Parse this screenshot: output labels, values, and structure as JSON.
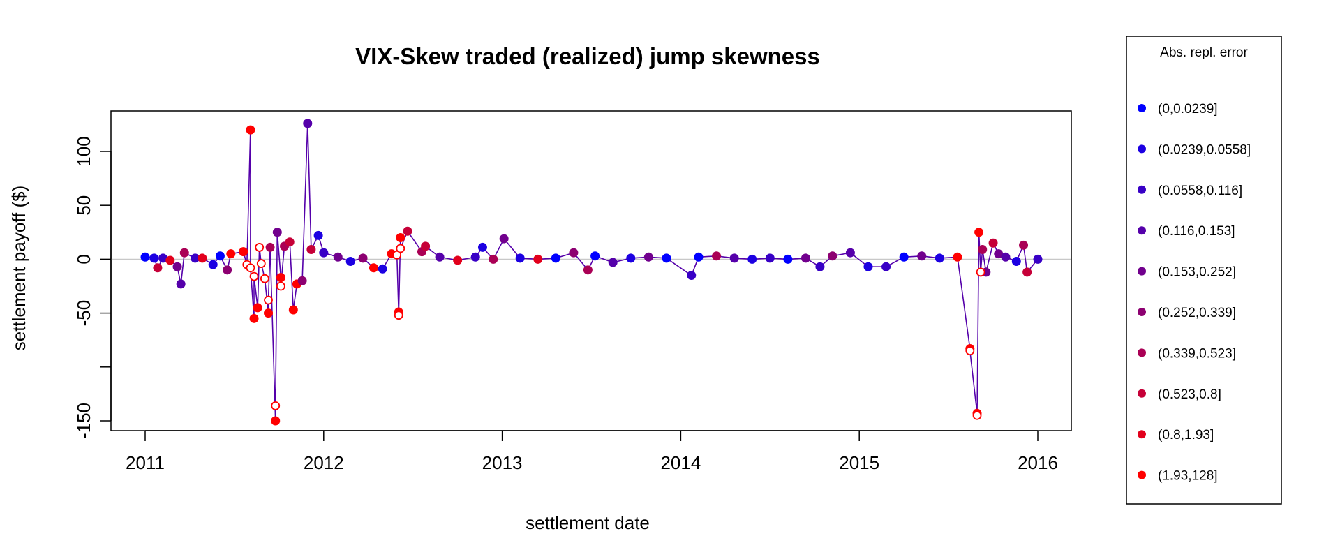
{
  "chart_data": {
    "type": "scatter",
    "title": "VIX-Skew traded (realized) jump skewness",
    "xlabel": "settlement date",
    "ylabel": "settlement payoff ($)",
    "xlim": [
      2011,
      2016
    ],
    "ylim": [
      -155,
      128
    ],
    "x_ticks": [
      "2011",
      "2012",
      "2013",
      "2014",
      "2015",
      "2016"
    ],
    "y_ticks": [
      {
        "value": 100,
        "label": "100"
      },
      {
        "value": 50,
        "label": "50"
      },
      {
        "value": 0,
        "label": "0"
      },
      {
        "value": -50,
        "label": "-50"
      },
      {
        "value": -100,
        "label": ""
      },
      {
        "value": -150,
        "label": "-150"
      }
    ],
    "zero_line": true,
    "grid": false,
    "legend": {
      "title": "Abs. repl. error",
      "placement": "right",
      "entries": [
        {
          "label": "(0,0.0239]",
          "color": "#0000FF"
        },
        {
          "label": "(0.0239,0.0558]",
          "color": "#1C00E2"
        },
        {
          "label": "(0.0558,0.116]",
          "color": "#3800C6"
        },
        {
          "label": "(0.116,0.153]",
          "color": "#5500AA"
        },
        {
          "label": "(0.153,0.252]",
          "color": "#71008D"
        },
        {
          "label": "(0.252,0.339]",
          "color": "#8D0071"
        },
        {
          "label": "(0.339,0.523]",
          "color": "#AA0055"
        },
        {
          "label": "(0.523,0.8]",
          "color": "#C60038"
        },
        {
          "label": "(0.8,1.93]",
          "color": "#E2001C"
        },
        {
          "label": "(1.93,128]",
          "color": "#FF0000"
        }
      ]
    },
    "line_color": "#5500AA",
    "series": [
      {
        "marker": "filled",
        "points": [
          {
            "x": 2011.0,
            "y": 2,
            "c": 0
          },
          {
            "x": 2011.05,
            "y": 1,
            "c": 1
          },
          {
            "x": 2011.07,
            "y": -8,
            "c": 7
          },
          {
            "x": 2011.1,
            "y": 1,
            "c": 2
          },
          {
            "x": 2011.14,
            "y": -1,
            "c": 8
          },
          {
            "x": 2011.18,
            "y": -7,
            "c": 4
          },
          {
            "x": 2011.2,
            "y": -23,
            "c": 3
          },
          {
            "x": 2011.22,
            "y": 6,
            "c": 6
          },
          {
            "x": 2011.28,
            "y": 1,
            "c": 2
          },
          {
            "x": 2011.32,
            "y": 1,
            "c": 8
          },
          {
            "x": 2011.38,
            "y": -5,
            "c": 1
          },
          {
            "x": 2011.42,
            "y": 3,
            "c": 0
          },
          {
            "x": 2011.46,
            "y": -10,
            "c": 5
          },
          {
            "x": 2011.48,
            "y": 5,
            "c": 9
          },
          {
            "x": 2011.55,
            "y": 7,
            "c": 9
          },
          {
            "x": 2011.59,
            "y": 120,
            "c": 9
          },
          {
            "x": 2011.61,
            "y": -55,
            "c": 9
          },
          {
            "x": 2011.63,
            "y": -45,
            "c": 9
          },
          {
            "x": 2011.69,
            "y": -50,
            "c": 9
          },
          {
            "x": 2011.7,
            "y": 11,
            "c": 6
          },
          {
            "x": 2011.73,
            "y": -150,
            "c": 9
          },
          {
            "x": 2011.74,
            "y": 25,
            "c": 4
          },
          {
            "x": 2011.76,
            "y": -17,
            "c": 9
          },
          {
            "x": 2011.78,
            "y": 12,
            "c": 6
          },
          {
            "x": 2011.81,
            "y": 16,
            "c": 7
          },
          {
            "x": 2011.83,
            "y": -47,
            "c": 9
          },
          {
            "x": 2011.85,
            "y": -23,
            "c": 9
          },
          {
            "x": 2011.88,
            "y": -20,
            "c": 5
          },
          {
            "x": 2011.91,
            "y": 126,
            "c": 3
          },
          {
            "x": 2011.93,
            "y": 9,
            "c": 7
          },
          {
            "x": 2011.97,
            "y": 22,
            "c": 1
          },
          {
            "x": 2012.0,
            "y": 6,
            "c": 2
          },
          {
            "x": 2012.08,
            "y": 2,
            "c": 4
          },
          {
            "x": 2012.15,
            "y": -2,
            "c": 1
          },
          {
            "x": 2012.22,
            "y": 1,
            "c": 5
          },
          {
            "x": 2012.28,
            "y": -8,
            "c": 9
          },
          {
            "x": 2012.33,
            "y": -9,
            "c": 1
          },
          {
            "x": 2012.38,
            "y": 5,
            "c": 9
          },
          {
            "x": 2012.42,
            "y": -49,
            "c": 9
          },
          {
            "x": 2012.43,
            "y": 20,
            "c": 9
          },
          {
            "x": 2012.47,
            "y": 26,
            "c": 7
          },
          {
            "x": 2012.55,
            "y": 7,
            "c": 6
          },
          {
            "x": 2012.57,
            "y": 12,
            "c": 7
          },
          {
            "x": 2012.65,
            "y": 2,
            "c": 3
          },
          {
            "x": 2012.75,
            "y": -1,
            "c": 8
          },
          {
            "x": 2012.85,
            "y": 2,
            "c": 2
          },
          {
            "x": 2012.89,
            "y": 11,
            "c": 1
          },
          {
            "x": 2012.95,
            "y": 0,
            "c": 6
          },
          {
            "x": 2013.01,
            "y": 19,
            "c": 4
          },
          {
            "x": 2013.1,
            "y": 1,
            "c": 1
          },
          {
            "x": 2013.2,
            "y": 0,
            "c": 8
          },
          {
            "x": 2013.3,
            "y": 1,
            "c": 0
          },
          {
            "x": 2013.4,
            "y": 6,
            "c": 5
          },
          {
            "x": 2013.48,
            "y": -10,
            "c": 6
          },
          {
            "x": 2013.52,
            "y": 3,
            "c": 0
          },
          {
            "x": 2013.62,
            "y": -3,
            "c": 3
          },
          {
            "x": 2013.72,
            "y": 1,
            "c": 1
          },
          {
            "x": 2013.82,
            "y": 2,
            "c": 4
          },
          {
            "x": 2013.92,
            "y": 1,
            "c": 0
          },
          {
            "x": 2014.06,
            "y": -15,
            "c": 2
          },
          {
            "x": 2014.1,
            "y": 2,
            "c": 0
          },
          {
            "x": 2014.2,
            "y": 3,
            "c": 6
          },
          {
            "x": 2014.3,
            "y": 1,
            "c": 3
          },
          {
            "x": 2014.4,
            "y": 0,
            "c": 1
          },
          {
            "x": 2014.5,
            "y": 1,
            "c": 2
          },
          {
            "x": 2014.6,
            "y": 0,
            "c": 0
          },
          {
            "x": 2014.7,
            "y": 1,
            "c": 4
          },
          {
            "x": 2014.78,
            "y": -7,
            "c": 2
          },
          {
            "x": 2014.85,
            "y": 3,
            "c": 5
          },
          {
            "x": 2014.95,
            "y": 6,
            "c": 3
          },
          {
            "x": 2015.05,
            "y": -7,
            "c": 1
          },
          {
            "x": 2015.15,
            "y": -7,
            "c": 2
          },
          {
            "x": 2015.25,
            "y": 2,
            "c": 0
          },
          {
            "x": 2015.35,
            "y": 3,
            "c": 4
          },
          {
            "x": 2015.45,
            "y": 1,
            "c": 1
          },
          {
            "x": 2015.55,
            "y": 2,
            "c": 9
          },
          {
            "x": 2015.62,
            "y": -83,
            "c": 9
          },
          {
            "x": 2015.66,
            "y": -143,
            "c": 9
          },
          {
            "x": 2015.67,
            "y": 25,
            "c": 9
          },
          {
            "x": 2015.69,
            "y": 9,
            "c": 6
          },
          {
            "x": 2015.71,
            "y": -12,
            "c": 4
          },
          {
            "x": 2015.75,
            "y": 15,
            "c": 7
          },
          {
            "x": 2015.78,
            "y": 5,
            "c": 4
          },
          {
            "x": 2015.82,
            "y": 2,
            "c": 3
          },
          {
            "x": 2015.88,
            "y": -2,
            "c": 1
          },
          {
            "x": 2015.92,
            "y": 13,
            "c": 6
          },
          {
            "x": 2015.94,
            "y": -12,
            "c": 7
          },
          {
            "x": 2016.0,
            "y": 0,
            "c": 2
          }
        ]
      },
      {
        "marker": "open",
        "points": [
          {
            "x": 2011.57,
            "y": -5,
            "c": 9
          },
          {
            "x": 2011.59,
            "y": -8,
            "c": 9
          },
          {
            "x": 2011.61,
            "y": -16,
            "c": 9
          },
          {
            "x": 2011.64,
            "y": 11,
            "c": 9
          },
          {
            "x": 2011.65,
            "y": -4,
            "c": 9
          },
          {
            "x": 2011.67,
            "y": -18,
            "c": 9
          },
          {
            "x": 2011.69,
            "y": -38,
            "c": 9
          },
          {
            "x": 2011.73,
            "y": -136,
            "c": 9
          },
          {
            "x": 2011.76,
            "y": -25,
            "c": 9
          },
          {
            "x": 2012.41,
            "y": 4,
            "c": 9
          },
          {
            "x": 2012.43,
            "y": 10,
            "c": 9
          },
          {
            "x": 2012.42,
            "y": -52,
            "c": 9
          },
          {
            "x": 2015.62,
            "y": -85,
            "c": 9
          },
          {
            "x": 2015.66,
            "y": -145,
            "c": 9
          },
          {
            "x": 2015.68,
            "y": -12,
            "c": 9
          }
        ]
      }
    ]
  }
}
